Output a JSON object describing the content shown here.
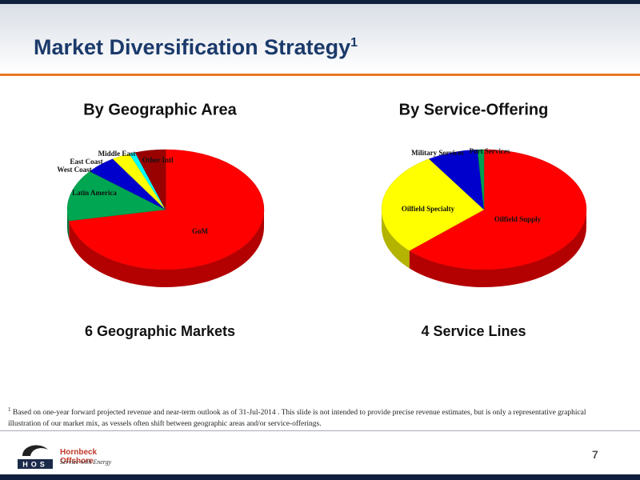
{
  "header": {
    "title": "Market Diversification Strategy",
    "title_marker": "1"
  },
  "chart_data": [
    {
      "type": "pie",
      "title": "By Geographic Area",
      "caption": "6 Geographic Markets",
      "categories": [
        "GoM",
        "Latin America",
        "West Coast",
        "East Coast",
        "Middle East",
        "Other Intl"
      ],
      "values": [
        72,
        14,
        5,
        3,
        1,
        5
      ],
      "colors": [
        "#ff0000",
        "#00a651",
        "#0000cc",
        "#ffff00",
        "#00ffff",
        "#990000"
      ]
    },
    {
      "type": "pie",
      "title": "By Service-Offering",
      "caption": "4 Service Lines",
      "categories": [
        "Oilfield Supply",
        "Oilfield Specialty",
        "Military Services",
        "Port Services"
      ],
      "values": [
        63,
        28,
        8,
        1
      ],
      "colors": [
        "#ff0000",
        "#ffff00",
        "#0000cc",
        "#00a050"
      ]
    }
  ],
  "footnote": {
    "marker": "1",
    "text": "Based on one-year forward projected revenue and near-term outlook as of 31-Jul-2014 .  This slide is not intended to provide precise revenue estimates, but is only a representative graphical illustration of our market mix, as vessels often shift between geographic areas and/or service-offerings."
  },
  "footer": {
    "company": "Hornbeck Offshore",
    "tagline": "Service with Energy",
    "logo_letters": "HOS",
    "page_number": "7"
  }
}
